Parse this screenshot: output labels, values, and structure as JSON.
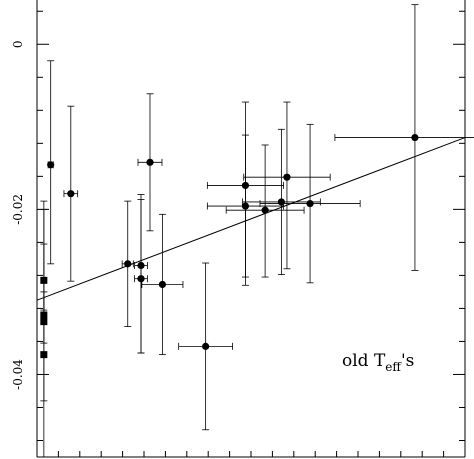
{
  "chart_data": {
    "type": "scatter",
    "title": "",
    "xlabel": "",
    "ylabel": "",
    "xlim": [
      0,
      1
    ],
    "ylim": [
      -0.05,
      0.005
    ],
    "y_ticks_major": [
      -0.04,
      -0.02,
      0
    ],
    "y_tick_labels": [
      "-0.04",
      "-0.02",
      "0"
    ],
    "y_minor_step": 0.004,
    "x_minor_step": 0.05,
    "annotation": {
      "main": "old T",
      "sub": "eff",
      "suffix": "'s"
    },
    "points": [
      {
        "x": 0.016,
        "y": -0.0286,
        "marker": "square",
        "xerr": 0.0,
        "yerr_lo": 0.0036,
        "yerr_hi": 0.0096
      },
      {
        "x": 0.016,
        "y": -0.0328,
        "marker": "square",
        "xerr": 0.0,
        "yerr_lo": 0.0034,
        "yerr_hi": 0.0086
      },
      {
        "x": 0.016,
        "y": -0.0336,
        "marker": "square",
        "xerr": 0.0,
        "yerr_lo": 0.0096,
        "yerr_hi": 0.0036
      },
      {
        "x": 0.016,
        "y": -0.0376,
        "marker": "square",
        "xerr": 0.0,
        "yerr_lo": 0.0124,
        "yerr_hi": 0.0176
      },
      {
        "x": 0.032,
        "y": -0.0146,
        "marker": "circle",
        "xerr": 0.006,
        "yerr_lo": 0.012,
        "yerr_hi": 0.0126
      },
      {
        "x": 0.079,
        "y": -0.0181,
        "marker": "circle",
        "xerr": 0.016,
        "yerr_lo": 0.0106,
        "yerr_hi": 0.0106
      },
      {
        "x": 0.212,
        "y": -0.0266,
        "marker": "circle",
        "xerr": 0.013,
        "yerr_lo": 0.0076,
        "yerr_hi": 0.0076
      },
      {
        "x": 0.243,
        "y": -0.0268,
        "marker": "circle",
        "xerr": 0.015,
        "yerr_lo": 0.0106,
        "yerr_hi": 0.0086
      },
      {
        "x": 0.243,
        "y": -0.0284,
        "marker": "circle",
        "xerr": 0.015,
        "yerr_lo": 0.009,
        "yerr_hi": 0.0096
      },
      {
        "x": 0.264,
        "y": -0.0143,
        "marker": "circle",
        "xerr": 0.028,
        "yerr_lo": 0.0083,
        "yerr_hi": 0.0083
      },
      {
        "x": 0.293,
        "y": -0.0291,
        "marker": "circle",
        "xerr": 0.048,
        "yerr_lo": 0.0085,
        "yerr_hi": 0.0085
      },
      {
        "x": 0.394,
        "y": -0.0366,
        "marker": "circle",
        "xerr": 0.063,
        "yerr_lo": 0.0101,
        "yerr_hi": 0.0101
      },
      {
        "x": 0.487,
        "y": -0.0171,
        "marker": "circle",
        "xerr": 0.089,
        "yerr_lo": 0.0121,
        "yerr_hi": 0.0101
      },
      {
        "x": 0.487,
        "y": -0.0196,
        "marker": "circle",
        "xerr": 0.089,
        "yerr_lo": 0.0086,
        "yerr_hi": 0.0086
      },
      {
        "x": 0.533,
        "y": -0.0201,
        "marker": "circle",
        "xerr": 0.091,
        "yerr_lo": 0.0081,
        "yerr_hi": 0.0079
      },
      {
        "x": 0.571,
        "y": -0.0191,
        "marker": "circle",
        "xerr": 0.091,
        "yerr_lo": 0.0088,
        "yerr_hi": 0.0088
      },
      {
        "x": 0.584,
        "y": -0.0161,
        "marker": "circle",
        "xerr": 0.101,
        "yerr_lo": 0.0111,
        "yerr_hi": 0.0091
      },
      {
        "x": 0.638,
        "y": -0.0193,
        "marker": "circle",
        "xerr": 0.117,
        "yerr_lo": 0.0096,
        "yerr_hi": 0.0096
      },
      {
        "x": 0.883,
        "y": -0.0113,
        "marker": "circle",
        "xerr": 0.187,
        "yerr_lo": 0.0161,
        "yerr_hi": 0.0161
      }
    ],
    "fit_line": {
      "x0": 0.0,
      "y0": -0.031,
      "x1": 1.0,
      "y1": -0.0113
    },
    "grid": false,
    "legend": "none"
  }
}
